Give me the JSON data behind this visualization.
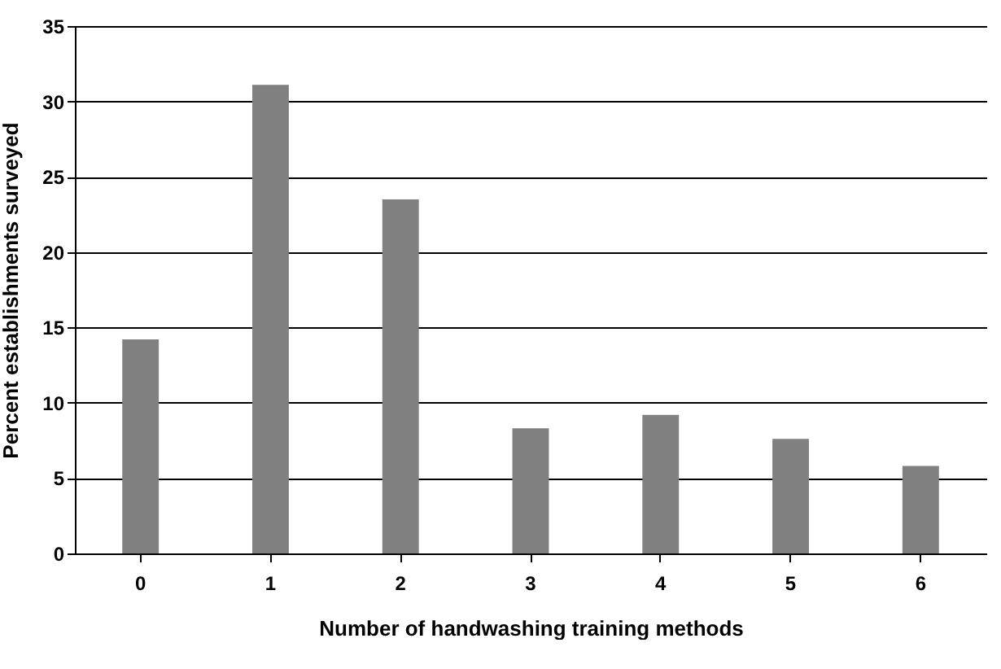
{
  "chart_data": {
    "type": "bar",
    "xlabel": "Number of handwashing training methods",
    "ylabel": "Percent establishments surveyed",
    "categories": [
      "0",
      "1",
      "2",
      "3",
      "4",
      "5",
      "6"
    ],
    "values": [
      14.2,
      31.1,
      23.5,
      8.3,
      9.2,
      7.6,
      5.8
    ],
    "color": "#808080",
    "ylim": [
      0,
      35
    ],
    "yticks": [
      0,
      5,
      10,
      15,
      20,
      25,
      30,
      35
    ],
    "grid": "y"
  }
}
